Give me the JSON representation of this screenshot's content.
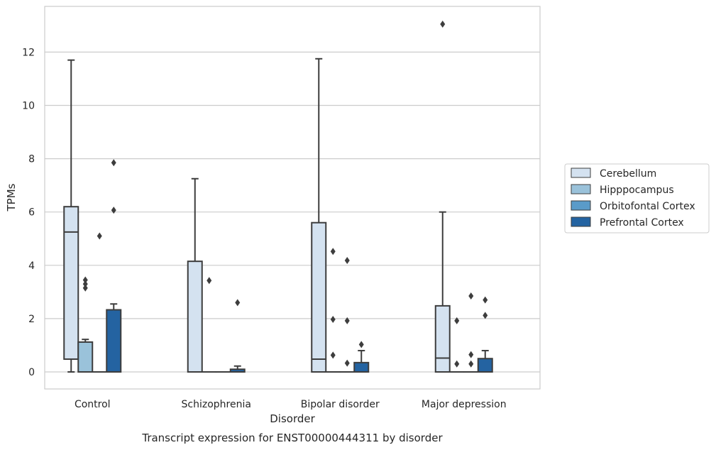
{
  "chart_data": {
    "type": "box",
    "xlabel": "Disorder",
    "ylabel": "TPMs",
    "caption": "Transcript expression for ENST00000444311 by disorder",
    "ylim": [
      -0.65,
      13.8
    ],
    "yticks": [
      0,
      2,
      4,
      6,
      8,
      10,
      12
    ],
    "grid": "horizontal",
    "legend_position": "right",
    "categories": [
      "Control",
      "Schizophrenia",
      "Bipolar disorder",
      "Major depression"
    ],
    "series": [
      {
        "name": "Cerebellum",
        "color": "#d4e2f0",
        "boxes": [
          {
            "q1": 0.48,
            "median": 5.25,
            "q3": 6.2,
            "whisker_low": 0.0,
            "whisker_high": 11.7,
            "outliers": []
          },
          {
            "q1": 0.0,
            "median": 0.0,
            "q3": 4.15,
            "whisker_low": 0.0,
            "whisker_high": 7.25,
            "outliers": []
          },
          {
            "q1": 0.0,
            "median": 0.48,
            "q3": 5.6,
            "whisker_low": 0.0,
            "whisker_high": 11.75,
            "outliers": []
          },
          {
            "q1": 0.0,
            "median": 0.52,
            "q3": 2.48,
            "whisker_low": 0.0,
            "whisker_high": 6.0,
            "outliers": [
              13.05
            ]
          }
        ]
      },
      {
        "name": "Hipppocampus",
        "color": "#9ac2da",
        "boxes": [
          {
            "q1": 0.0,
            "median": 0.0,
            "q3": 1.12,
            "whisker_low": 0.0,
            "whisker_high": 1.22,
            "outliers": [
              3.15,
              3.3,
              3.45
            ]
          },
          {
            "q1": 0.0,
            "median": 0.0,
            "q3": 0.0,
            "whisker_low": 0.0,
            "whisker_high": 0.0,
            "outliers": [
              3.43
            ]
          },
          {
            "q1": 0.0,
            "median": 0.0,
            "q3": 0.0,
            "whisker_low": 0.0,
            "whisker_high": 0.0,
            "outliers": [
              0.63,
              1.97,
              4.52
            ]
          },
          {
            "q1": 0.0,
            "median": 0.0,
            "q3": 0.0,
            "whisker_low": 0.0,
            "whisker_high": 0.0,
            "outliers": [
              0.3,
              1.92
            ]
          }
        ]
      },
      {
        "name": "Orbitofontal Cortex",
        "color": "#5a9bc9",
        "boxes": [
          {
            "q1": 0.0,
            "median": 0.0,
            "q3": 0.0,
            "whisker_low": 0.0,
            "whisker_high": 0.0,
            "outliers": [
              5.1
            ]
          },
          {
            "q1": 0.0,
            "median": 0.0,
            "q3": 0.0,
            "whisker_low": 0.0,
            "whisker_high": 0.0,
            "outliers": []
          },
          {
            "q1": 0.0,
            "median": 0.0,
            "q3": 0.0,
            "whisker_low": 0.0,
            "whisker_high": 0.0,
            "outliers": [
              0.33,
              1.92,
              4.18
            ]
          },
          {
            "q1": 0.0,
            "median": 0.0,
            "q3": 0.0,
            "whisker_low": 0.0,
            "whisker_high": 0.0,
            "outliers": [
              0.3,
              0.65,
              2.85
            ]
          }
        ]
      },
      {
        "name": "Prefrontal Cortex",
        "color": "#2463a1",
        "boxes": [
          {
            "q1": 0.0,
            "median": 0.0,
            "q3": 2.33,
            "whisker_low": 0.0,
            "whisker_high": 2.55,
            "outliers": [
              6.07,
              7.85
            ]
          },
          {
            "q1": 0.0,
            "median": 0.0,
            "q3": 0.1,
            "whisker_low": 0.0,
            "whisker_high": 0.22,
            "outliers": [
              2.6
            ]
          },
          {
            "q1": 0.0,
            "median": 0.0,
            "q3": 0.35,
            "whisker_low": 0.0,
            "whisker_high": 0.8,
            "outliers": [
              1.03
            ]
          },
          {
            "q1": 0.0,
            "median": 0.0,
            "q3": 0.5,
            "whisker_low": 0.0,
            "whisker_high": 0.8,
            "outliers": [
              2.12,
              2.7
            ]
          }
        ]
      }
    ]
  }
}
